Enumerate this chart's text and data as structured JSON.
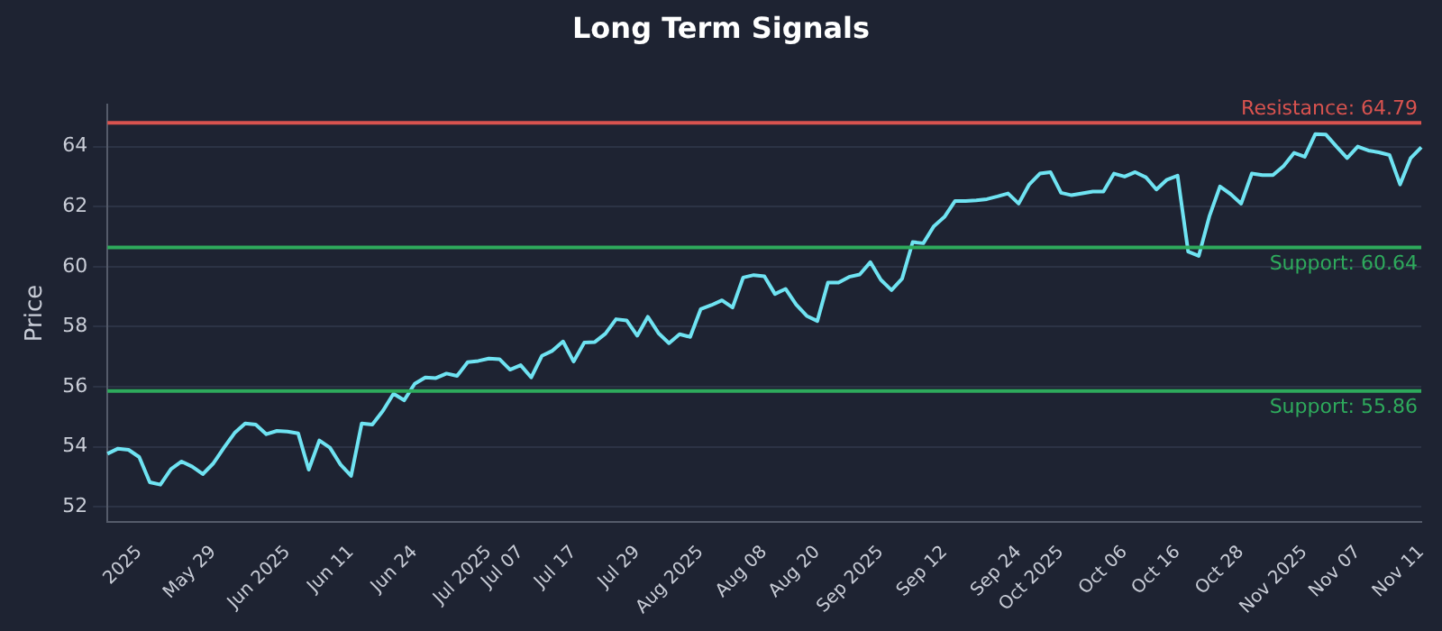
{
  "chart_data": {
    "type": "line",
    "title": "Long Term Signals",
    "ylabel": "Price",
    "categories": [
      null,
      null,
      null,
      "2025",
      null,
      null,
      null,
      null,
      null,
      null,
      "May 29",
      null,
      null,
      null,
      null,
      null,
      null,
      "Jun 2025",
      null,
      null,
      null,
      null,
      null,
      "Jun 11",
      null,
      null,
      null,
      null,
      null,
      "Jun 24",
      null,
      null,
      null,
      null,
      null,
      null,
      "Jul 2025",
      null,
      null,
      "Jul 07",
      null,
      null,
      null,
      null,
      "Jul 17",
      null,
      null,
      null,
      null,
      null,
      "Jul 29",
      null,
      null,
      null,
      null,
      null,
      "Aug 2025",
      null,
      null,
      null,
      null,
      null,
      "Aug 08",
      null,
      null,
      null,
      null,
      "Aug 20",
      null,
      null,
      null,
      null,
      null,
      "Sep 2025",
      null,
      null,
      null,
      null,
      null,
      "Sep 12",
      null,
      null,
      null,
      null,
      null,
      null,
      "Sep 24",
      null,
      null,
      null,
      "Oct 2025",
      null,
      null,
      null,
      null,
      null,
      "Oct 06",
      null,
      null,
      null,
      null,
      "Oct 16",
      null,
      null,
      null,
      null,
      null,
      "Oct 28",
      null,
      null,
      null,
      null,
      null,
      "Nov 2025",
      null,
      null,
      null,
      null,
      "Nov 07",
      null,
      null,
      null,
      null,
      null,
      "Nov 11"
    ],
    "series": [
      {
        "color": "#6fe3f2",
        "values": [
          53.77,
          53.94,
          53.9,
          53.66,
          52.82,
          52.74,
          53.26,
          53.51,
          53.34,
          53.09,
          53.45,
          53.97,
          54.46,
          54.78,
          54.74,
          54.42,
          54.53,
          54.51,
          54.45,
          53.24,
          54.21,
          53.97,
          53.41,
          53.03,
          54.78,
          54.74,
          55.2,
          55.77,
          55.55,
          56.1,
          56.31,
          56.29,
          56.44,
          56.36,
          56.82,
          56.86,
          56.94,
          56.92,
          56.57,
          56.72,
          56.31,
          57.03,
          57.2,
          57.51,
          56.84,
          57.47,
          57.49,
          57.77,
          58.25,
          58.21,
          57.7,
          58.33,
          57.79,
          57.45,
          57.75,
          57.66,
          58.59,
          58.72,
          58.88,
          58.64,
          59.64,
          59.72,
          59.68,
          59.09,
          59.26,
          58.74,
          58.36,
          58.19,
          59.47,
          59.47,
          59.66,
          59.74,
          60.15,
          59.56,
          59.22,
          59.6,
          60.82,
          60.78,
          61.35,
          61.66,
          62.19,
          62.19,
          62.21,
          62.25,
          62.34,
          62.44,
          62.1,
          62.74,
          63.1,
          63.15,
          62.46,
          62.38,
          62.44,
          62.5,
          62.5,
          63.1,
          63.0,
          63.15,
          62.98,
          62.57,
          62.9,
          63.03,
          60.5,
          60.36,
          61.68,
          62.67,
          62.42,
          62.1,
          63.1,
          63.05,
          63.05,
          63.35,
          63.79,
          63.66,
          64.42,
          64.4,
          64.0,
          63.62,
          64.0,
          63.87,
          63.81,
          63.72,
          62.74,
          63.62,
          63.98
        ]
      }
    ],
    "ylim": [
      51.5,
      65.4
    ],
    "yticks": [
      52,
      54,
      56,
      58,
      60,
      62,
      64
    ],
    "grid": "y",
    "legend": false,
    "marker": "none",
    "line_style": "solid",
    "ref_lines": [
      {
        "axis": "y",
        "value": 64.79,
        "label": "Resistance: 64.79",
        "color": "#d9534f"
      },
      {
        "axis": "y",
        "value": 60.64,
        "label": "Support: 60.64",
        "color": "#2eaa5c"
      },
      {
        "axis": "y",
        "value": 55.86,
        "label": "Support: 55.86",
        "color": "#2eaa5c"
      }
    ]
  }
}
